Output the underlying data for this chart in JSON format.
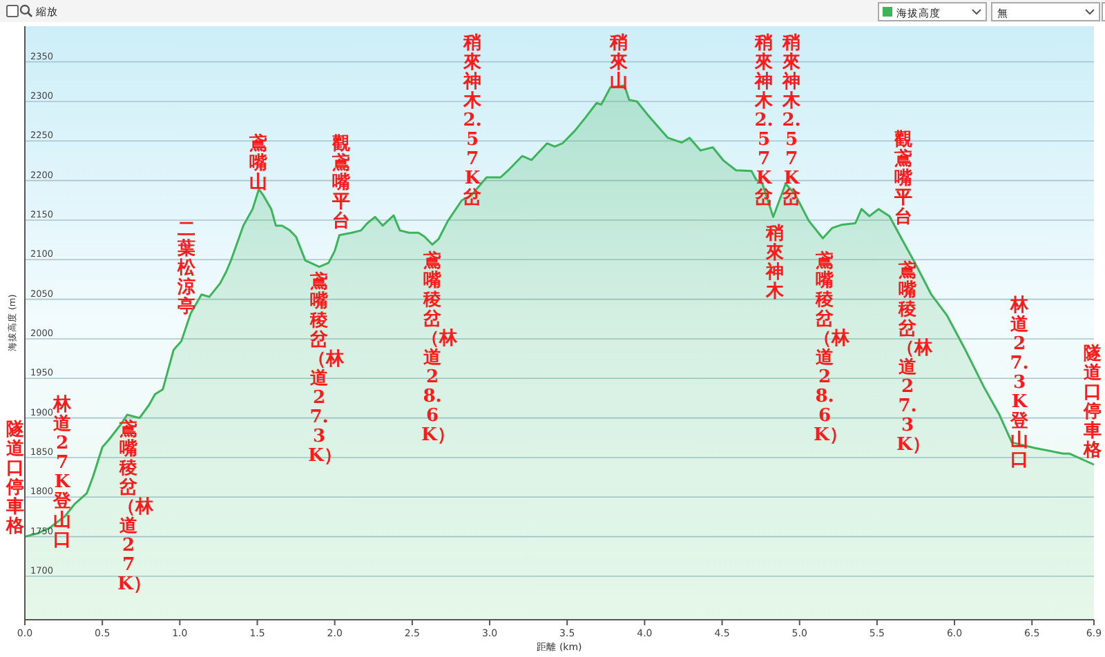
{
  "chart_data": {
    "type": "area",
    "xlabel": "距離 (km)",
    "ylabel": "海拔高度 (m)",
    "xlim": [
      0,
      6.9
    ],
    "ylim": [
      1645,
      2395
    ],
    "xticks": [
      {
        "value": 0,
        "label": "0.0"
      },
      0.5,
      {
        "value": 1,
        "label": "1.0"
      },
      1.5,
      {
        "value": 2,
        "label": "2.0"
      },
      2.5,
      {
        "value": 3,
        "label": "3.0"
      },
      3.5,
      {
        "value": 4,
        "label": "4.0"
      },
      4.5,
      {
        "value": 5,
        "label": "5.0"
      },
      5.5,
      {
        "value": 6,
        "label": "6.0"
      },
      6.5,
      6.9
    ],
    "yticks": [
      1700,
      1750,
      1800,
      1850,
      1900,
      1950,
      2000,
      2050,
      2100,
      2150,
      2200,
      2250,
      2300,
      2350
    ],
    "grid": "y",
    "legend": "top right",
    "series": [
      {
        "name": "海拔高度",
        "color": "#3cb55a",
        "x": [
          0,
          0.08,
          0.16,
          0.22,
          0.26,
          0.32,
          0.4,
          0.44,
          0.5,
          0.54,
          0.62,
          0.66,
          0.74,
          0.8,
          0.84,
          0.89,
          0.96,
          1.01,
          1.07,
          1.14,
          1.19,
          1.26,
          1.3,
          1.33,
          1.41,
          1.47,
          1.51,
          1.54,
          1.59,
          1.62,
          1.66,
          1.71,
          1.75,
          1.81,
          1.9,
          1.96,
          2,
          2.03,
          2.11,
          2.17,
          2.21,
          2.26,
          2.31,
          2.38,
          2.42,
          2.48,
          2.54,
          2.58,
          2.63,
          2.67,
          2.73,
          2.82,
          2.88,
          2.98,
          3.07,
          3.12,
          3.21,
          3.27,
          3.37,
          3.42,
          3.47,
          3.55,
          3.62,
          3.69,
          3.72,
          3.78,
          3.87,
          3.9,
          3.95,
          4.02,
          4.1,
          4.15,
          4.24,
          4.29,
          4.36,
          4.44,
          4.51,
          4.59,
          4.69,
          4.72,
          4.76,
          4.83,
          4.91,
          4.97,
          5.06,
          5.15,
          5.21,
          5.27,
          5.36,
          5.4,
          5.45,
          5.51,
          5.58,
          5.66,
          5.75,
          5.85,
          5.95,
          6.07,
          6.19,
          6.29,
          6.37,
          6.52,
          6.7,
          6.74,
          6.9
        ],
        "values": [
          1750,
          1754,
          1761,
          1770,
          1776,
          1791,
          1805,
          1826,
          1863,
          1872,
          1892,
          1904,
          1900,
          1916,
          1930,
          1936,
          1986,
          1997,
          2032,
          2056,
          2053,
          2070,
          2085,
          2099,
          2143,
          2164,
          2189,
          2181,
          2164,
          2143,
          2143,
          2137,
          2129,
          2099,
          2091,
          2096,
          2111,
          2131,
          2134,
          2137,
          2146,
          2154,
          2143,
          2156,
          2137,
          2134,
          2134,
          2129,
          2119,
          2126,
          2149,
          2175,
          2181,
          2204,
          2204,
          2213,
          2231,
          2226,
          2247,
          2243,
          2247,
          2263,
          2280,
          2298,
          2296,
          2318,
          2320,
          2302,
          2300,
          2283,
          2265,
          2254,
          2248,
          2254,
          2238,
          2242,
          2225,
          2213,
          2212,
          2201,
          2196,
          2154,
          2196,
          2183,
          2149,
          2127,
          2140,
          2144,
          2146,
          2164,
          2155,
          2164,
          2155,
          2126,
          2094,
          2056,
          2030,
          1986,
          1939,
          1904,
          1869,
          1862,
          1855,
          1855,
          1841
        ]
      }
    ],
    "annotations": [
      "縮放",
      "無",
      "隧道口停車格",
      "林道27K登山口",
      "鳶嘴稜岔（林道27K）",
      "二葉松涼亭",
      "鳶嘴山",
      "觀鳶嘴平台",
      "鳶嘴稜岔（林道27.3K）",
      "鳶嘴稜岔（林道28.6K）",
      "稍來神木2.57K岔",
      "稍來山",
      "稍來神木2.57K岔",
      "稍來神木2.57K岔",
      "稍來神木",
      "鳶嘴稜岔（林道28.6K）",
      "觀鳶嘴平台",
      "鳶嘴稜岔（林道27.3K）",
      "林道27.3K登山口",
      "隧道口停車格"
    ]
  }
}
